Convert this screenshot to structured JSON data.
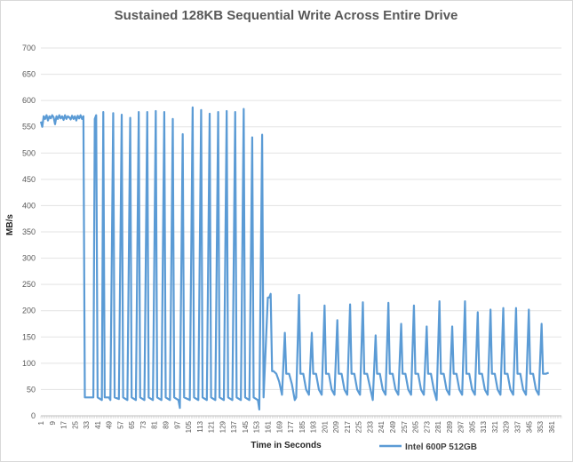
{
  "chart_data": {
    "type": "line",
    "title": "Sustained 128KB Sequential Write Across Entire Drive",
    "xlabel": "Time in Seconds",
    "ylabel": "MB/s",
    "ylim": [
      0,
      700
    ],
    "yticks": [
      0,
      50,
      100,
      150,
      200,
      250,
      300,
      350,
      400,
      450,
      500,
      550,
      600,
      650,
      700
    ],
    "xlim": [
      1,
      368
    ],
    "xticks": [
      1,
      9,
      17,
      25,
      33,
      41,
      49,
      57,
      65,
      73,
      81,
      89,
      97,
      105,
      113,
      121,
      129,
      137,
      145,
      153,
      161,
      169,
      177,
      185,
      193,
      201,
      209,
      217,
      225,
      233,
      241,
      249,
      257,
      265,
      273,
      281,
      289,
      297,
      305,
      313,
      321,
      329,
      337,
      345,
      353,
      361
    ],
    "grid": "horizontal",
    "legend": "bottom-right",
    "series": [
      {
        "name": "Intel 600P 512GB",
        "color": "#5b9bd5",
        "points": [
          [
            1,
            560
          ],
          [
            2,
            550
          ],
          [
            3,
            570
          ],
          [
            4,
            565
          ],
          [
            5,
            572
          ],
          [
            6,
            562
          ],
          [
            7,
            570
          ],
          [
            8,
            566
          ],
          [
            9,
            572
          ],
          [
            10,
            568
          ],
          [
            11,
            555
          ],
          [
            12,
            570
          ],
          [
            13,
            565
          ],
          [
            14,
            572
          ],
          [
            15,
            566
          ],
          [
            16,
            570
          ],
          [
            17,
            563
          ],
          [
            18,
            572
          ],
          [
            19,
            565
          ],
          [
            20,
            570
          ],
          [
            21,
            568
          ],
          [
            22,
            564
          ],
          [
            23,
            571
          ],
          [
            24,
            565
          ],
          [
            25,
            570
          ],
          [
            26,
            562
          ],
          [
            27,
            571
          ],
          [
            28,
            566
          ],
          [
            29,
            572
          ],
          [
            30,
            565
          ],
          [
            31,
            570
          ],
          [
            32,
            35
          ],
          [
            35,
            35
          ],
          [
            38,
            35
          ],
          [
            39,
            565
          ],
          [
            40,
            572
          ],
          [
            41,
            35
          ],
          [
            44,
            30
          ],
          [
            45,
            578
          ],
          [
            46,
            35
          ],
          [
            49,
            35
          ],
          [
            50,
            30
          ],
          [
            52,
            576
          ],
          [
            53,
            35
          ],
          [
            56,
            32
          ],
          [
            58,
            573
          ],
          [
            59,
            35
          ],
          [
            62,
            30
          ],
          [
            64,
            567
          ],
          [
            65,
            35
          ],
          [
            68,
            30
          ],
          [
            70,
            578
          ],
          [
            71,
            35
          ],
          [
            74,
            30
          ],
          [
            76,
            578
          ],
          [
            77,
            35
          ],
          [
            80,
            30
          ],
          [
            82,
            580
          ],
          [
            83,
            35
          ],
          [
            86,
            30
          ],
          [
            88,
            578
          ],
          [
            89,
            35
          ],
          [
            92,
            30
          ],
          [
            94,
            565
          ],
          [
            95,
            35
          ],
          [
            98,
            30
          ],
          [
            99,
            15
          ],
          [
            101,
            536
          ],
          [
            102,
            35
          ],
          [
            106,
            30
          ],
          [
            108,
            587
          ],
          [
            109,
            35
          ],
          [
            112,
            30
          ],
          [
            114,
            582
          ],
          [
            115,
            35
          ],
          [
            118,
            30
          ],
          [
            120,
            575
          ],
          [
            121,
            35
          ],
          [
            124,
            30
          ],
          [
            126,
            578
          ],
          [
            127,
            35
          ],
          [
            130,
            30
          ],
          [
            132,
            580
          ],
          [
            133,
            35
          ],
          [
            136,
            30
          ],
          [
            138,
            578
          ],
          [
            139,
            35
          ],
          [
            142,
            30
          ],
          [
            144,
            584
          ],
          [
            145,
            35
          ],
          [
            148,
            30
          ],
          [
            150,
            530
          ],
          [
            151,
            35
          ],
          [
            154,
            30
          ],
          [
            155,
            12
          ],
          [
            157,
            535
          ],
          [
            158,
            35
          ],
          [
            161,
            225
          ],
          [
            162,
            225
          ],
          [
            163,
            232
          ],
          [
            164,
            85
          ],
          [
            165,
            85
          ],
          [
            167,
            80
          ],
          [
            169,
            65
          ],
          [
            171,
            40
          ],
          [
            173,
            158
          ],
          [
            174,
            80
          ],
          [
            176,
            80
          ],
          [
            178,
            60
          ],
          [
            180,
            30
          ],
          [
            181,
            35
          ],
          [
            183,
            230
          ],
          [
            184,
            80
          ],
          [
            186,
            80
          ],
          [
            188,
            50
          ],
          [
            190,
            40
          ],
          [
            192,
            158
          ],
          [
            193,
            80
          ],
          [
            195,
            80
          ],
          [
            197,
            50
          ],
          [
            199,
            40
          ],
          [
            201,
            210
          ],
          [
            202,
            80
          ],
          [
            204,
            80
          ],
          [
            206,
            50
          ],
          [
            208,
            40
          ],
          [
            210,
            182
          ],
          [
            211,
            80
          ],
          [
            213,
            80
          ],
          [
            215,
            50
          ],
          [
            217,
            40
          ],
          [
            219,
            212
          ],
          [
            220,
            80
          ],
          [
            222,
            80
          ],
          [
            224,
            50
          ],
          [
            226,
            40
          ],
          [
            228,
            216
          ],
          [
            229,
            80
          ],
          [
            231,
            80
          ],
          [
            233,
            55
          ],
          [
            235,
            30
          ],
          [
            237,
            153
          ],
          [
            238,
            80
          ],
          [
            240,
            80
          ],
          [
            242,
            50
          ],
          [
            244,
            40
          ],
          [
            246,
            215
          ],
          [
            247,
            80
          ],
          [
            249,
            80
          ],
          [
            251,
            50
          ],
          [
            253,
            40
          ],
          [
            255,
            175
          ],
          [
            256,
            80
          ],
          [
            258,
            80
          ],
          [
            260,
            50
          ],
          [
            262,
            40
          ],
          [
            264,
            210
          ],
          [
            265,
            80
          ],
          [
            267,
            80
          ],
          [
            269,
            50
          ],
          [
            271,
            40
          ],
          [
            273,
            170
          ],
          [
            274,
            80
          ],
          [
            276,
            80
          ],
          [
            278,
            50
          ],
          [
            280,
            30
          ],
          [
            282,
            218
          ],
          [
            283,
            80
          ],
          [
            285,
            80
          ],
          [
            287,
            50
          ],
          [
            289,
            40
          ],
          [
            291,
            170
          ],
          [
            292,
            80
          ],
          [
            294,
            80
          ],
          [
            296,
            50
          ],
          [
            298,
            40
          ],
          [
            300,
            218
          ],
          [
            301,
            80
          ],
          [
            303,
            80
          ],
          [
            305,
            50
          ],
          [
            307,
            40
          ],
          [
            309,
            197
          ],
          [
            310,
            80
          ],
          [
            312,
            80
          ],
          [
            314,
            50
          ],
          [
            316,
            40
          ],
          [
            318,
            202
          ],
          [
            319,
            80
          ],
          [
            321,
            80
          ],
          [
            323,
            50
          ],
          [
            325,
            40
          ],
          [
            327,
            205
          ],
          [
            328,
            80
          ],
          [
            330,
            80
          ],
          [
            332,
            50
          ],
          [
            334,
            40
          ],
          [
            336,
            205
          ],
          [
            337,
            80
          ],
          [
            339,
            80
          ],
          [
            341,
            50
          ],
          [
            343,
            40
          ],
          [
            345,
            202
          ],
          [
            346,
            80
          ],
          [
            348,
            80
          ],
          [
            350,
            50
          ],
          [
            352,
            40
          ],
          [
            354,
            175
          ],
          [
            355,
            80
          ],
          [
            357,
            80
          ],
          [
            359,
            82
          ]
        ]
      }
    ]
  }
}
